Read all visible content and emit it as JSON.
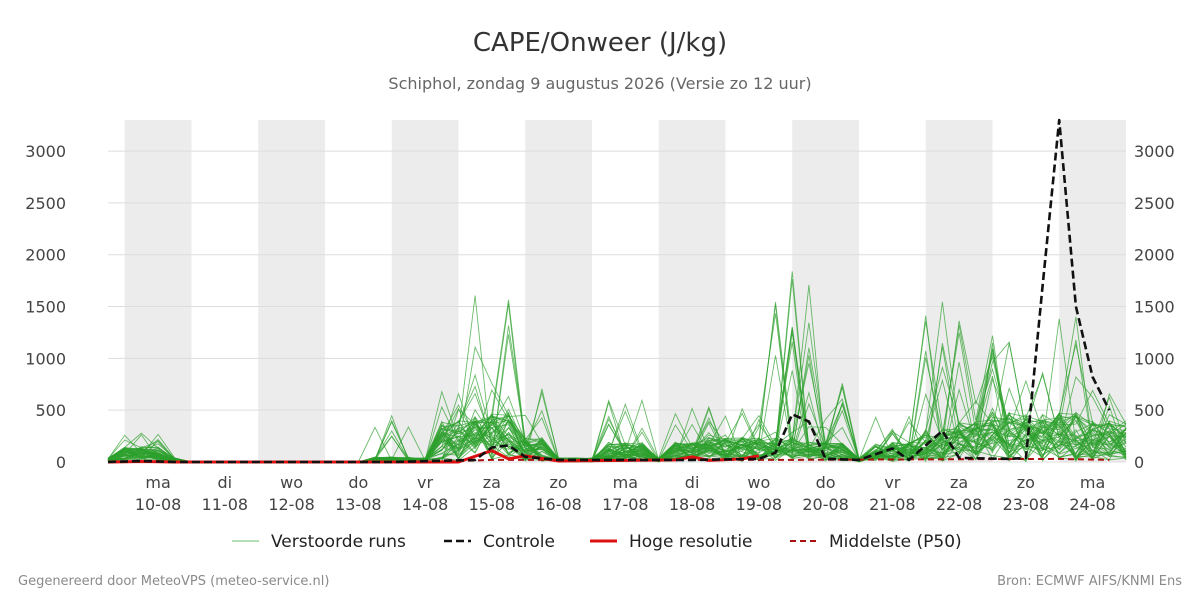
{
  "title": "CAPE/Onweer (J/kg)",
  "subtitle": "Schiphol, zondag  9 augustus 2026 (Versie zo 12 uur)",
  "footer_left": "Gegenereerd door MeteoVPS (meteo-service.nl)",
  "footer_right": "Bron: ECMWF AIFS/KNMI Ens",
  "colors": {
    "ensemble": "#2ca02c",
    "control": "#111111",
    "hires": "#dd1111",
    "median": "#aa1111",
    "weekend_band": "#ececec",
    "grid": "#dddddd"
  },
  "chart_data": {
    "type": "line",
    "x_unit": "days",
    "x_tick_day_labels": [
      "ma",
      "di",
      "wo",
      "do",
      "vr",
      "za",
      "zo",
      "ma",
      "di",
      "wo",
      "do",
      "vr",
      "za",
      "zo",
      "ma"
    ],
    "x_tick_date_labels": [
      "10-08",
      "11-08",
      "12-08",
      "13-08",
      "14-08",
      "15-08",
      "16-08",
      "17-08",
      "18-08",
      "19-08",
      "20-08",
      "21-08",
      "22-08",
      "23-08",
      "24-08"
    ],
    "xlim": [
      "2026-08-09T18:00",
      "2026-08-25T00:00"
    ],
    "ylim": [
      0,
      3300
    ],
    "y_ticks": [
      0,
      500,
      1000,
      1500,
      2000,
      2500,
      3000
    ],
    "grid": true,
    "legend_position": "bottom",
    "legend": [
      "Verstoorde runs",
      "Controle",
      "Hoge resolutie",
      "Middelste (P50)"
    ],
    "shaded_bands": [
      {
        "x0": "2026-08-10T00:00",
        "x1": "2026-08-11T00:00"
      },
      {
        "x0": "2026-08-12T00:00",
        "x1": "2026-08-13T00:00"
      },
      {
        "x0": "2026-08-14T00:00",
        "x1": "2026-08-15T00:00"
      },
      {
        "x0": "2026-08-16T00:00",
        "x1": "2026-08-17T00:00"
      },
      {
        "x0": "2026-08-18T00:00",
        "x1": "2026-08-19T00:00"
      },
      {
        "x0": "2026-08-20T00:00",
        "x1": "2026-08-21T00:00"
      },
      {
        "x0": "2026-08-22T00:00",
        "x1": "2026-08-23T00:00"
      },
      {
        "x0": "2026-08-24T00:00",
        "x1": "2026-08-25T00:00"
      }
    ],
    "series": [
      {
        "name": "Controle",
        "style": "dashed",
        "points": [
          [
            "2026-08-09T18:00",
            0
          ],
          [
            "2026-08-10T06:00",
            10
          ],
          [
            "2026-08-10T18:00",
            0
          ],
          [
            "2026-08-14T00:00",
            0
          ],
          [
            "2026-08-15T06:00",
            20
          ],
          [
            "2026-08-15T12:00",
            140
          ],
          [
            "2026-08-15T18:00",
            160
          ],
          [
            "2026-08-16T00:00",
            50
          ],
          [
            "2026-08-16T12:00",
            20
          ],
          [
            "2026-08-18T12:00",
            20
          ],
          [
            "2026-08-19T12:00",
            30
          ],
          [
            "2026-08-19T18:00",
            90
          ],
          [
            "2026-08-20T00:00",
            460
          ],
          [
            "2026-08-20T06:00",
            390
          ],
          [
            "2026-08-20T12:00",
            30
          ],
          [
            "2026-08-21T00:00",
            20
          ],
          [
            "2026-08-21T12:00",
            130
          ],
          [
            "2026-08-21T18:00",
            20
          ],
          [
            "2026-08-22T06:00",
            300
          ],
          [
            "2026-08-22T12:00",
            40
          ],
          [
            "2026-08-23T06:00",
            30
          ],
          [
            "2026-08-23T12:00",
            40
          ],
          [
            "2026-08-23T18:00",
            1700
          ],
          [
            "2026-08-24T00:00",
            3300
          ],
          [
            "2026-08-24T06:00",
            1500
          ],
          [
            "2026-08-24T12:00",
            820
          ],
          [
            "2026-08-24T18:00",
            500
          ]
        ]
      },
      {
        "name": "Hoge resolutie",
        "style": "solid",
        "points": [
          [
            "2026-08-09T18:00",
            0
          ],
          [
            "2026-08-10T06:00",
            5
          ],
          [
            "2026-08-10T18:00",
            0
          ],
          [
            "2026-08-15T00:00",
            0
          ],
          [
            "2026-08-15T12:00",
            110
          ],
          [
            "2026-08-15T18:00",
            30
          ],
          [
            "2026-08-16T00:00",
            60
          ],
          [
            "2026-08-16T12:00",
            10
          ],
          [
            "2026-08-17T12:00",
            15
          ],
          [
            "2026-08-18T06:00",
            20
          ],
          [
            "2026-08-18T12:00",
            50
          ],
          [
            "2026-08-18T18:00",
            15
          ],
          [
            "2026-08-19T06:00",
            30
          ],
          [
            "2026-08-19T12:00",
            60
          ]
        ]
      },
      {
        "name": "Middelste (P50)",
        "style": "dashed",
        "points": [
          [
            "2026-08-09T18:00",
            0
          ],
          [
            "2026-08-14T12:00",
            0
          ],
          [
            "2026-08-15T12:00",
            20
          ],
          [
            "2026-08-16T00:00",
            20
          ],
          [
            "2026-08-19T18:00",
            20
          ],
          [
            "2026-08-24T00:00",
            30
          ],
          [
            "2026-08-24T18:00",
            20
          ]
        ]
      }
    ]
  }
}
